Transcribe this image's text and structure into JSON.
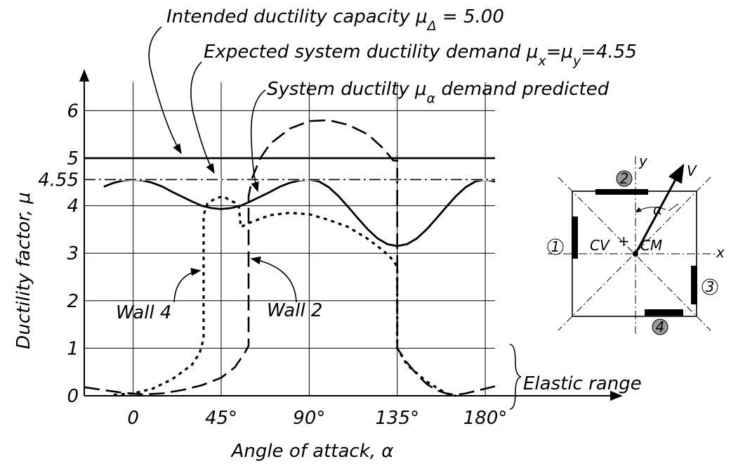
{
  "chart_data": {
    "type": "line",
    "xlabel": "Angle of attack, α",
    "ylabel": "Ductility factor, μ",
    "xlim": [
      -25,
      185
    ],
    "ylim": [
      0,
      6.6
    ],
    "xticks": [
      0,
      {
        "value": 45,
        "label": "45°"
      },
      {
        "value": 90,
        "label": "90°"
      },
      {
        "value": 135,
        "label": "135°"
      },
      {
        "value": 180,
        "label": "180°"
      }
    ],
    "yticks": [
      0,
      1,
      2,
      3,
      4,
      4.55,
      5,
      6
    ],
    "grid": true,
    "series": [
      {
        "color": "#000000",
        "style": "solid",
        "x": [
          -15,
          -10,
          -5,
          0,
          5,
          10,
          15,
          20,
          25,
          30,
          35,
          40,
          45,
          50,
          55,
          60,
          65,
          70,
          75,
          80,
          85,
          90,
          95,
          100,
          105,
          110,
          115,
          120,
          125,
          130,
          135,
          140,
          145,
          150,
          155,
          160,
          165,
          170,
          175,
          180,
          185
        ],
        "values": [
          4.4,
          4.48,
          4.53,
          4.55,
          4.53,
          4.48,
          4.4,
          4.29,
          4.19,
          4.09,
          4.0,
          3.95,
          3.93,
          3.95,
          4.0,
          4.09,
          4.19,
          4.29,
          4.4,
          4.48,
          4.53,
          4.55,
          4.51,
          4.39,
          4.2,
          3.97,
          3.73,
          3.5,
          3.31,
          3.19,
          3.15,
          3.19,
          3.31,
          3.5,
          3.73,
          3.97,
          4.2,
          4.39,
          4.51,
          4.55,
          4.51
        ]
      },
      {
        "color": "#000000",
        "style": "dashed",
        "x": [
          -25,
          -15,
          -5,
          5,
          15,
          25,
          35,
          45,
          52,
          57,
          59,
          59,
          61,
          65,
          70,
          80,
          90,
          100,
          110,
          120,
          128,
          133,
          135,
          135,
          140,
          145,
          150,
          155,
          160,
          165,
          170,
          175,
          180,
          185
        ],
        "values": [
          0.18,
          0.12,
          0.06,
          0.03,
          0.05,
          0.12,
          0.22,
          0.38,
          0.6,
          0.9,
          1.05,
          4.2,
          4.6,
          5.0,
          5.3,
          5.62,
          5.78,
          5.8,
          5.7,
          5.5,
          5.2,
          4.95,
          4.95,
          1.0,
          0.7,
          0.45,
          0.25,
          0.12,
          0.05,
          0.02,
          0.05,
          0.1,
          0.15,
          0.2
        ]
      },
      {
        "color": "#000000",
        "style": "dotted",
        "x": [
          -10,
          0,
          10,
          20,
          30,
          34,
          36,
          36,
          38,
          42,
          46,
          50,
          53,
          54,
          55,
          60,
          70,
          80,
          90,
          100,
          110,
          120,
          128,
          133,
          135,
          135,
          140,
          150,
          160,
          165
        ],
        "values": [
          0.02,
          0.05,
          0.15,
          0.35,
          0.65,
          0.9,
          1.2,
          3.8,
          4.05,
          4.15,
          4.2,
          4.1,
          4.05,
          4.0,
          3.55,
          3.65,
          3.8,
          3.85,
          3.82,
          3.7,
          3.55,
          3.3,
          3.05,
          2.85,
          2.7,
          1.0,
          0.65,
          0.3,
          0.05,
          0.0
        ]
      },
      {
        "color": "#000000",
        "style": "solid",
        "x": [
          -25,
          185
        ],
        "values": [
          5,
          5
        ]
      },
      {
        "color": "#000000",
        "style": "dashdot",
        "x": [
          -25,
          185
        ],
        "values": [
          4.55,
          4.55
        ]
      }
    ],
    "annotations": [
      {
        "segments": [
          {
            "text": "Intended ductility capacity μ"
          },
          {
            "text": "Δ",
            "sub": true
          },
          {
            "text": "  =  5.00"
          }
        ]
      },
      {
        "segments": [
          {
            "text": "Expected system ductility demand μ"
          },
          {
            "text": "x",
            "sub": true
          },
          {
            "text": "=μ"
          },
          {
            "text": "y",
            "sub": true
          },
          {
            "text": "=4.55"
          }
        ]
      },
      {
        "segments": [
          {
            "text": "System ductilty μ"
          },
          {
            "text": "α",
            "sub": true
          },
          {
            "text": " demand predicted"
          }
        ]
      },
      {
        "segments": [
          {
            "text": "Wall  4"
          }
        ]
      },
      {
        "segments": [
          {
            "text": "Wall  2"
          }
        ]
      },
      {
        "segments": [
          {
            "text": "Elastic range"
          }
        ]
      }
    ]
  },
  "inset": {
    "y_axis": "y",
    "x_axis": "x",
    "force": "V",
    "angle": "α",
    "cv": "CV",
    "cm": "CM",
    "walls": [
      "1",
      "2",
      "3",
      "4"
    ]
  }
}
